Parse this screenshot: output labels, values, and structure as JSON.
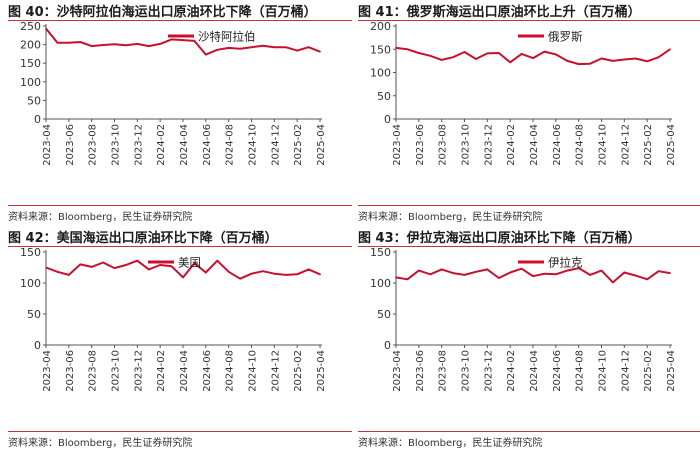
{
  "source_text": "资料来源：Bloomberg，民生证券研究院",
  "colors": {
    "series": "#c8102e",
    "rule": "#c8323c",
    "axis": "#555555"
  },
  "chart_data": [
    {
      "type": "line",
      "title": "图 40：沙特阿拉伯海运出口原油环比下降（百万桶）",
      "legend": "沙特阿拉伯",
      "legend_position": "top-right",
      "yticks": [
        0,
        50,
        100,
        150,
        200,
        250
      ],
      "ylim": [
        0,
        250
      ],
      "xticks": [
        "2023-04",
        "2023-06",
        "2023-08",
        "2023-10",
        "2023-12",
        "2024-02",
        "2024-04",
        "2024-06",
        "2024-08",
        "2024-10",
        "2024-12",
        "2025-02",
        "2025-04"
      ],
      "x": [
        "2023-04",
        "2023-05",
        "2023-06",
        "2023-07",
        "2023-08",
        "2023-09",
        "2023-10",
        "2023-11",
        "2023-12",
        "2024-01",
        "2024-02",
        "2024-03",
        "2024-04",
        "2024-05",
        "2024-06",
        "2024-07",
        "2024-08",
        "2024-09",
        "2024-10",
        "2024-11",
        "2024-12",
        "2025-01",
        "2025-02",
        "2025-03",
        "2025-04"
      ],
      "values": [
        243,
        205,
        205,
        207,
        196,
        199,
        201,
        198,
        202,
        196,
        202,
        214,
        212,
        210,
        173,
        186,
        191,
        189,
        193,
        197,
        193,
        193,
        184,
        193,
        181
      ]
    },
    {
      "type": "line",
      "title": "图 41：俄罗斯海运出口原油环比上升（百万桶）",
      "legend": "俄罗斯",
      "legend_position": "top-right",
      "yticks": [
        0,
        50,
        100,
        150,
        200
      ],
      "ylim": [
        0,
        200
      ],
      "xticks": [
        "2023-04",
        "2023-06",
        "2023-08",
        "2023-10",
        "2023-12",
        "2024-02",
        "2024-04",
        "2024-06",
        "2024-08",
        "2024-10",
        "2024-12",
        "2025-02",
        "2025-04"
      ],
      "x": [
        "2023-04",
        "2023-05",
        "2023-06",
        "2023-07",
        "2023-08",
        "2023-09",
        "2023-10",
        "2023-11",
        "2023-12",
        "2024-01",
        "2024-02",
        "2024-03",
        "2024-04",
        "2024-05",
        "2024-06",
        "2024-07",
        "2024-08",
        "2024-09",
        "2024-10",
        "2024-11",
        "2024-12",
        "2025-01",
        "2025-02",
        "2025-03",
        "2025-04"
      ],
      "values": [
        153,
        150,
        142,
        136,
        127,
        133,
        144,
        129,
        141,
        142,
        122,
        140,
        131,
        145,
        139,
        125,
        118,
        119,
        130,
        125,
        128,
        130,
        124,
        133,
        150
      ]
    },
    {
      "type": "line",
      "title": "图 42：美国海运出口原油环比下降（百万桶）",
      "legend": "美国",
      "legend_position": "top-center",
      "yticks": [
        0,
        50,
        100,
        150
      ],
      "ylim": [
        0,
        150
      ],
      "xticks": [
        "2023-04",
        "2023-06",
        "2023-08",
        "2023-10",
        "2023-12",
        "2024-02",
        "2024-04",
        "2024-06",
        "2024-08",
        "2024-10",
        "2024-12",
        "2025-02",
        "2025-04"
      ],
      "x": [
        "2023-04",
        "2023-05",
        "2023-06",
        "2023-07",
        "2023-08",
        "2023-09",
        "2023-10",
        "2023-11",
        "2023-12",
        "2024-01",
        "2024-02",
        "2024-03",
        "2024-04",
        "2024-05",
        "2024-06",
        "2024-07",
        "2024-08",
        "2024-09",
        "2024-10",
        "2024-11",
        "2024-12",
        "2025-01",
        "2025-02",
        "2025-03",
        "2025-04"
      ],
      "values": [
        125,
        118,
        113,
        130,
        126,
        133,
        124,
        129,
        136,
        122,
        129,
        127,
        109,
        132,
        117,
        136,
        118,
        107,
        115,
        119,
        115,
        113,
        114,
        122,
        114
      ]
    },
    {
      "type": "line",
      "title": "图 43：伊拉克海运出口原油环比下降（百万桶）",
      "legend": "伊拉克",
      "legend_position": "top-right",
      "yticks": [
        0,
        50,
        100,
        150
      ],
      "ylim": [
        0,
        150
      ],
      "xticks": [
        "2023-04",
        "2023-06",
        "2023-08",
        "2023-10",
        "2023-12",
        "2024-02",
        "2024-04",
        "2024-06",
        "2024-08",
        "2024-10",
        "2024-12",
        "2025-02",
        "2025-04"
      ],
      "x": [
        "2023-04",
        "2023-05",
        "2023-06",
        "2023-07",
        "2023-08",
        "2023-09",
        "2023-10",
        "2023-11",
        "2023-12",
        "2024-01",
        "2024-02",
        "2024-03",
        "2024-04",
        "2024-05",
        "2024-06",
        "2024-07",
        "2024-08",
        "2024-09",
        "2024-10",
        "2024-11",
        "2024-12",
        "2025-01",
        "2025-02",
        "2025-03",
        "2025-04"
      ],
      "values": [
        109,
        106,
        120,
        114,
        122,
        116,
        113,
        118,
        122,
        108,
        117,
        123,
        111,
        115,
        114,
        120,
        124,
        113,
        120,
        101,
        117,
        112,
        106,
        119,
        116
      ]
    }
  ]
}
